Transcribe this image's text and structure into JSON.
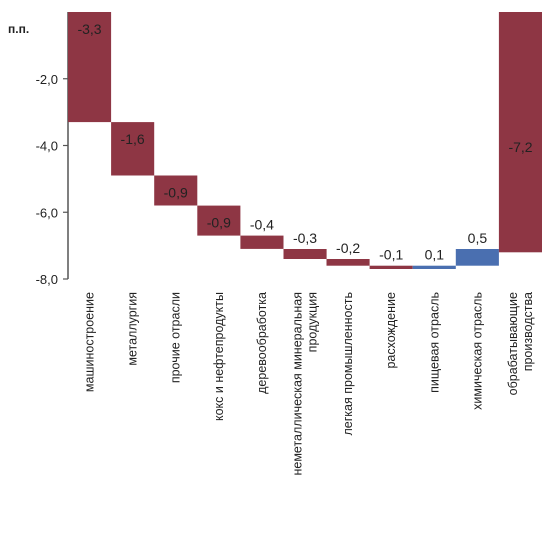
{
  "chart_data": {
    "type": "bar",
    "subtype": "waterfall",
    "ylabel": "п.п.",
    "ylim": [
      -8.0,
      0.0
    ],
    "yticks": [
      -2.0,
      -4.0,
      -6.0,
      -8.0
    ],
    "ytick_labels": [
      "-2,0",
      "-4,0",
      "-6,0",
      "-8,0"
    ],
    "grid": false,
    "legend": "none",
    "categories": [
      [
        "машиностроение"
      ],
      [
        "металлургия"
      ],
      [
        "прочие отрасли"
      ],
      [
        "кокс и нефтепродукты"
      ],
      [
        "деревообработка"
      ],
      [
        "неметаллическая минеральная",
        "продукция"
      ],
      [
        "легкая промышленность"
      ],
      [
        "рaсхождение"
      ],
      [
        "пищевая отрасль"
      ],
      [
        "химическая отрасль"
      ],
      [
        "обрабатывающие",
        "производства"
      ]
    ],
    "values": [
      -3.3,
      -1.6,
      -0.9,
      -0.9,
      -0.4,
      -0.3,
      -0.2,
      -0.1,
      0.1,
      0.5,
      -7.2
    ],
    "value_labels": [
      "-3,3",
      "-1,6",
      "-0,9",
      "-0,9",
      "-0,4",
      "-0,3",
      "-0,2",
      "-0,1",
      "0,1",
      "0,5",
      "-7,2"
    ],
    "is_total": [
      false,
      false,
      false,
      false,
      false,
      false,
      false,
      false,
      false,
      false,
      true
    ],
    "colors": {
      "negative": "#8e3644",
      "positive": "#4a6fb0",
      "axis": "#555555",
      "text": "#222222"
    }
  }
}
